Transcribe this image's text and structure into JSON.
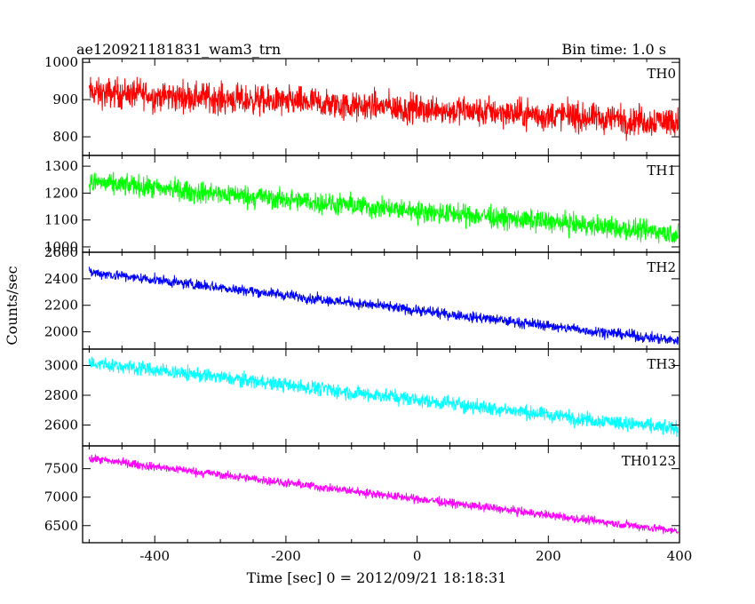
{
  "header": {
    "left_title": "ae120921181831_wam3_trn",
    "right_title": "Bin time: 1.0 s"
  },
  "chart_data": {
    "type": "line",
    "title": "ae120921181831_wam3_trn",
    "subtitle": "Bin time: 1.0 s",
    "xlabel": "Time [sec] 0 = 2012/09/21 18:18:31",
    "ylabel": "Counts/sec",
    "xlim": [
      -510,
      400
    ],
    "xticks": [
      -400,
      -200,
      0,
      200,
      400
    ],
    "grid": false,
    "panels": [
      {
        "name": "TH0",
        "color": "#ff0000",
        "ylim": [
          750,
          1010
        ],
        "yticks": [
          800,
          900,
          1000
        ],
        "trend": {
          "x": [
            -500,
            400
          ],
          "y": [
            920,
            840
          ]
        },
        "noise_amplitude": 45,
        "x_range": [
          -500,
          398
        ]
      },
      {
        "name": "TH1",
        "color": "#00ff00",
        "ylim": [
          980,
          1340
        ],
        "yticks": [
          1000,
          1100,
          1200,
          1300
        ],
        "trend": {
          "x": [
            -500,
            400
          ],
          "y": [
            1240,
            1050
          ]
        },
        "noise_amplitude": 45,
        "x_range": [
          -500,
          398
        ]
      },
      {
        "name": "TH2",
        "color": "#0000ff",
        "ylim": [
          1870,
          2600
        ],
        "yticks": [
          2000,
          2200,
          2400,
          2600
        ],
        "trend": {
          "x": [
            -500,
            400
          ],
          "y": [
            2450,
            1930
          ]
        },
        "noise_amplitude": 45,
        "x_range": [
          -500,
          398
        ]
      },
      {
        "name": "TH3",
        "color": "#00ffff",
        "ylim": [
          2460,
          3110
        ],
        "yticks": [
          2600,
          2800,
          3000
        ],
        "trend": {
          "x": [
            -500,
            400
          ],
          "y": [
            3020,
            2570
          ]
        },
        "noise_amplitude": 55,
        "x_range": [
          -500,
          398
        ]
      },
      {
        "name": "TH0123",
        "color": "#ff00ff",
        "ylim": [
          6200,
          7900
        ],
        "yticks": [
          6500,
          7000,
          7500
        ],
        "trend": {
          "x": [
            -500,
            400
          ],
          "y": [
            7680,
            6400
          ]
        },
        "noise_amplitude": 85,
        "x_range": [
          -500,
          398
        ]
      }
    ]
  }
}
